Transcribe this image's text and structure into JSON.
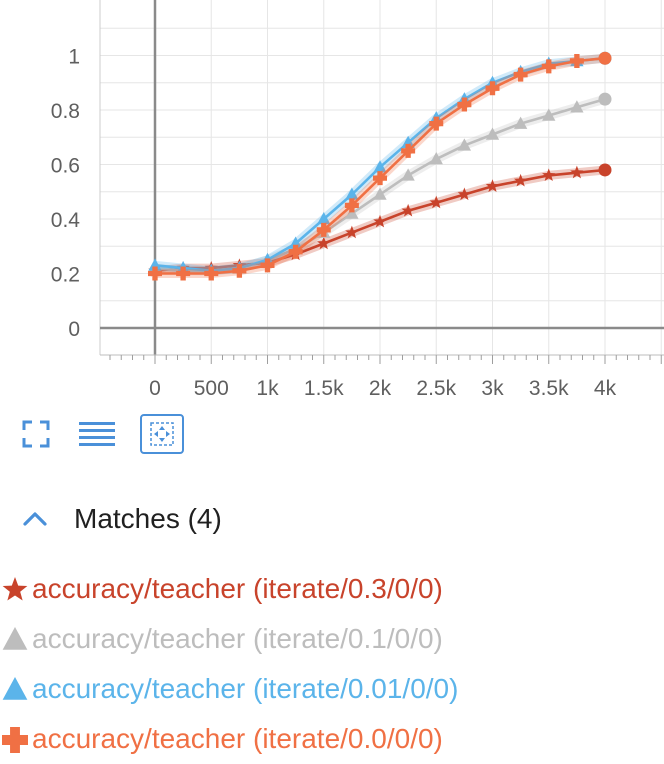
{
  "chart_data": {
    "type": "line",
    "title": "",
    "xlabel": "",
    "ylabel": "",
    "xlim": [
      -500,
      4500
    ],
    "ylim": [
      -0.1,
      1.15
    ],
    "x_ticks": [
      0,
      500,
      1000,
      1500,
      2000,
      2500,
      3000,
      3500,
      4000
    ],
    "x_tick_labels": [
      "0",
      "500",
      "1k",
      "1.5k",
      "2k",
      "2.5k",
      "3k",
      "3.5k",
      "4k"
    ],
    "y_ticks": [
      0,
      0.2,
      0.4,
      0.6,
      0.8,
      1
    ],
    "y_tick_labels": [
      "0",
      "0.2",
      "0.4",
      "0.6",
      "0.8",
      "1"
    ],
    "grid": true,
    "x": [
      0,
      250,
      500,
      750,
      1000,
      1250,
      1500,
      1750,
      2000,
      2250,
      2500,
      2750,
      3000,
      3250,
      3500,
      3750,
      4000
    ],
    "series": [
      {
        "name": "accuracy/teacher (iterate/0.3/0/0)",
        "color": "#c8432b",
        "marker": "star",
        "values": [
          0.21,
          0.22,
          0.22,
          0.23,
          0.24,
          0.27,
          0.31,
          0.35,
          0.39,
          0.43,
          0.46,
          0.49,
          0.52,
          0.54,
          0.56,
          0.57,
          0.58
        ]
      },
      {
        "name": "accuracy/teacher (iterate/0.1/0/0)",
        "color": "#bdbdbd",
        "marker": "triangle",
        "values": [
          0.22,
          0.21,
          0.21,
          0.22,
          0.25,
          0.29,
          0.35,
          0.42,
          0.49,
          0.56,
          0.62,
          0.67,
          0.71,
          0.75,
          0.78,
          0.81,
          0.84
        ]
      },
      {
        "name": "accuracy/teacher (iterate/0.01/0/0)",
        "color": "#5bb4ea",
        "marker": "triangle",
        "values": [
          0.23,
          0.22,
          0.21,
          0.22,
          0.25,
          0.31,
          0.4,
          0.49,
          0.59,
          0.68,
          0.77,
          0.84,
          0.9,
          0.94,
          0.97,
          0.98,
          0.99
        ]
      },
      {
        "name": "accuracy/teacher (iterate/0.0/0/0)",
        "color": "#f07044",
        "marker": "plus",
        "values": [
          0.2,
          0.2,
          0.2,
          0.21,
          0.23,
          0.28,
          0.36,
          0.45,
          0.55,
          0.65,
          0.75,
          0.82,
          0.88,
          0.93,
          0.96,
          0.98,
          0.99
        ]
      }
    ]
  },
  "toolbar": {
    "items": [
      {
        "name": "fullscreen-icon"
      },
      {
        "name": "list-icon"
      },
      {
        "name": "fit-to-data-icon"
      }
    ],
    "accent": "#4a90d9"
  },
  "matches": {
    "label": "Matches (4)",
    "icon": "chevron-up-icon",
    "icon_color": "#4a90d9"
  }
}
